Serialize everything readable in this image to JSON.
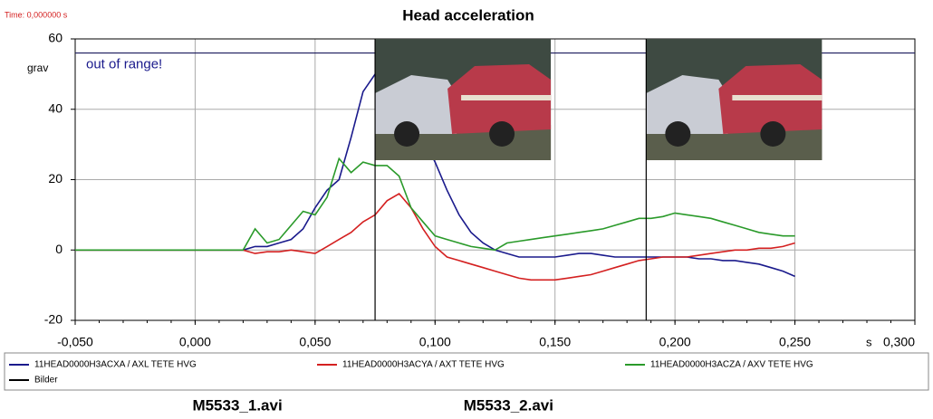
{
  "chart_data": {
    "type": "line",
    "title": "Head acceleration",
    "time_label": "Time: 0,000000 s",
    "y_unit": "grav",
    "x_unit": "s",
    "annotation": "out of range!",
    "range_limit": 56,
    "x": [
      -0.05,
      -0.045,
      -0.04,
      -0.035,
      -0.03,
      -0.025,
      -0.02,
      -0.015,
      -0.01,
      -0.005,
      0,
      0.005,
      0.01,
      0.015,
      0.02,
      0.025,
      0.03,
      0.035,
      0.04,
      0.045,
      0.05,
      0.055,
      0.06,
      0.065,
      0.07,
      0.075,
      0.08,
      0.085,
      0.09,
      0.095,
      0.1,
      0.105,
      0.11,
      0.115,
      0.12,
      0.125,
      0.13,
      0.135,
      0.14,
      0.145,
      0.15,
      0.155,
      0.16,
      0.165,
      0.17,
      0.175,
      0.18,
      0.185,
      0.19,
      0.195,
      0.2,
      0.205,
      0.21,
      0.215,
      0.22,
      0.225,
      0.23,
      0.235,
      0.24,
      0.245,
      0.25
    ],
    "series": [
      {
        "name": "11HEAD0000H3ACXA / AXL TETE HVG",
        "color": "#1a1a8c",
        "values": [
          0,
          0,
          0,
          0,
          0,
          0,
          0,
          0,
          0,
          0,
          0,
          0,
          0,
          0,
          0,
          1,
          1,
          2,
          3,
          6,
          12,
          17,
          20,
          32,
          45,
          50,
          49,
          45,
          38,
          32,
          25,
          17,
          10,
          5,
          2,
          0,
          -1,
          -2,
          -2,
          -2,
          -2,
          -1.5,
          -1,
          -1,
          -1.5,
          -2,
          -2,
          -2,
          -2,
          -2,
          -2,
          -2,
          -2.5,
          -2.5,
          -3,
          -3,
          -3.5,
          -4,
          -5,
          -6,
          -7.5
        ]
      },
      {
        "name": "11HEAD0000H3ACYA / AXT TETE HVG",
        "color": "#d42020",
        "values": [
          0,
          0,
          0,
          0,
          0,
          0,
          0,
          0,
          0,
          0,
          0,
          0,
          0,
          0,
          0,
          -1,
          -0.5,
          -0.5,
          0,
          -0.5,
          -1,
          1,
          3,
          5,
          8,
          10,
          14,
          16,
          12,
          6,
          1,
          -2,
          -3,
          -4,
          -5,
          -6,
          -7,
          -8,
          -8.5,
          -8.5,
          -8.5,
          -8,
          -7.5,
          -7,
          -6,
          -5,
          -4,
          -3,
          -2.5,
          -2,
          -2,
          -2,
          -1.5,
          -1,
          -0.5,
          0,
          0,
          0.5,
          0.5,
          1,
          2
        ]
      },
      {
        "name": "11HEAD0000H3ACZA / AXV TETE HVG",
        "color": "#2a9a2a",
        "values": [
          0,
          0,
          0,
          0,
          0,
          0,
          0,
          0,
          0,
          0,
          0,
          0,
          0,
          0,
          0,
          6,
          2,
          3,
          7,
          11,
          10,
          15,
          26,
          22,
          25,
          24,
          24,
          21,
          12,
          8,
          4,
          3,
          2,
          1,
          0.5,
          0,
          2,
          2.5,
          3,
          3.5,
          4,
          4.5,
          5,
          5.5,
          6,
          7,
          8,
          9,
          9,
          9.5,
          10.5,
          10,
          9.5,
          9,
          8,
          7,
          6,
          5,
          4.5,
          4,
          4
        ]
      },
      {
        "name": "Bilder",
        "color": "#000000",
        "type": "vline",
        "x": [
          0.075,
          0.188
        ],
        "labels": [
          "M5533_1.avi",
          "M5533_2.avi"
        ]
      }
    ],
    "xlim": [
      -0.05,
      0.3
    ],
    "ylim": [
      -20,
      60
    ],
    "xticks": [
      {
        "value": -0.05,
        "label": "-0,050"
      },
      {
        "value": 0,
        "label": "0,000"
      },
      {
        "value": 0.05,
        "label": "0,050"
      },
      {
        "value": 0.1,
        "label": "0,100"
      },
      {
        "value": 0.15,
        "label": "0,150"
      },
      {
        "value": 0.2,
        "label": "0,200"
      },
      {
        "value": 0.25,
        "label": "0,250"
      },
      {
        "value": 0.3,
        "label": "0,300"
      }
    ],
    "yticks": [
      -20,
      0,
      20,
      40,
      60
    ],
    "grid": true
  }
}
